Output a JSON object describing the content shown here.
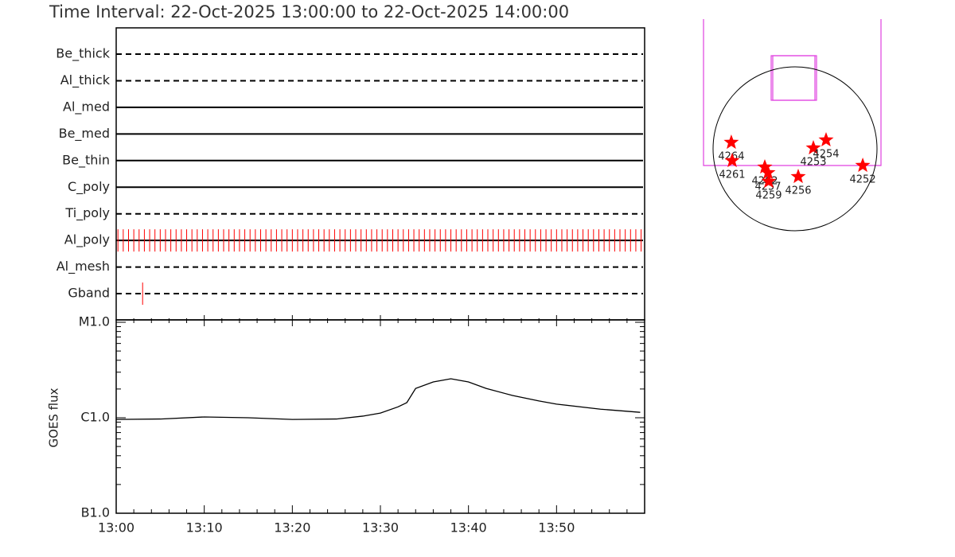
{
  "chart_data": [
    {
      "type": "timeline",
      "title": "Time Interval: 22-Oct-2025 13:00:00 to 22-Oct-2025 14:00:00",
      "categories": [
        "Be_thick",
        "Al_thick",
        "Al_med",
        "Be_med",
        "Be_thin",
        "C_poly",
        "Ti_poly",
        "Al_poly",
        "Al_mesh",
        "Gband"
      ],
      "styles": [
        "dashed",
        "dashed",
        "solid",
        "solid",
        "solid",
        "solid",
        "dashed",
        "solid",
        "dashed",
        "dashed"
      ],
      "xlim": [
        0,
        60
      ],
      "event_color": "#ff0000",
      "events": [
        [],
        [],
        [],
        [],
        [],
        [],
        [],
        [
          0.2,
          0.8,
          1.4,
          2,
          2.6,
          3.2,
          3.8,
          4.4,
          5,
          5.6,
          6.2,
          6.8,
          7.4,
          8,
          8.6,
          9.2,
          9.8,
          10.4,
          11,
          11.6,
          12.2,
          12.8,
          13.4,
          14,
          14.6,
          15.2,
          15.8,
          16.4,
          17,
          17.6,
          18.2,
          18.8,
          19.4,
          20,
          20.6,
          21.2,
          21.8,
          22.4,
          23,
          23.6,
          24.2,
          24.8,
          25.4,
          26,
          26.6,
          27.2,
          27.8,
          28.4,
          29,
          29.6,
          30.2,
          30.8,
          31.4,
          32,
          32.6,
          33.2,
          33.8,
          34.4,
          35,
          35.6,
          36.2,
          36.8,
          37.4,
          38,
          38.6,
          39.2,
          39.8,
          40.4,
          41,
          41.6,
          42.2,
          42.8,
          43.4,
          44,
          44.6,
          45.2,
          45.8,
          46.4,
          47,
          47.6,
          48.2,
          48.8,
          49.4,
          50,
          50.6,
          51.2,
          51.8,
          52.4,
          53,
          53.6,
          54.2,
          54.8,
          55.4,
          56,
          56.6,
          57.2,
          57.8,
          58.4,
          59,
          59.6
        ],
        [],
        [
          3
        ]
      ]
    },
    {
      "type": "line",
      "ylabel": "GOES flux",
      "log_scale": true,
      "color": "#000000",
      "xlim": [
        0,
        60
      ],
      "xticks": [
        {
          "value": 0,
          "label": "13:00"
        },
        {
          "value": 10,
          "label": "13:10"
        },
        {
          "value": 20,
          "label": "13:20"
        },
        {
          "value": 30,
          "label": "13:30"
        },
        {
          "value": 40,
          "label": "13:40"
        },
        {
          "value": 50,
          "label": "13:50"
        }
      ],
      "ylim": [
        1e-07,
        1e-05
      ],
      "yticks": [
        {
          "value": 1e-07,
          "label": "B1.0"
        },
        {
          "value": 1e-06,
          "label": "C1.0"
        },
        {
          "value": 1e-05,
          "label": "M1.0"
        }
      ],
      "x": [
        0,
        5,
        10,
        15,
        20,
        25,
        28,
        30,
        32,
        33,
        34,
        36,
        38,
        40,
        42,
        45,
        48,
        50,
        55,
        59.5
      ],
      "values": [
        9.6e-07,
        9.7e-07,
        1.02e-06,
        1e-06,
        9.6e-07,
        9.7e-07,
        1.04e-06,
        1.12e-06,
        1.3e-06,
        1.44e-06,
        2.03e-06,
        2.37e-06,
        2.56e-06,
        2.37e-06,
        2.03e-06,
        1.71e-06,
        1.5e-06,
        1.39e-06,
        1.23e-06,
        1.14e-06
      ]
    },
    {
      "type": "scatter",
      "color": "#ff0000",
      "labels": [
        "4264",
        "4261",
        "4262",
        "4257",
        "4259",
        "4256",
        "4253",
        "4254",
        "4252"
      ],
      "x": [
        -754,
        -744,
        -358,
        -320,
        -311,
        38,
        217,
        367,
        801
      ],
      "y": [
        75,
        -141,
        -217,
        -283,
        -386,
        -330,
        9,
        104,
        -198
      ]
    }
  ]
}
